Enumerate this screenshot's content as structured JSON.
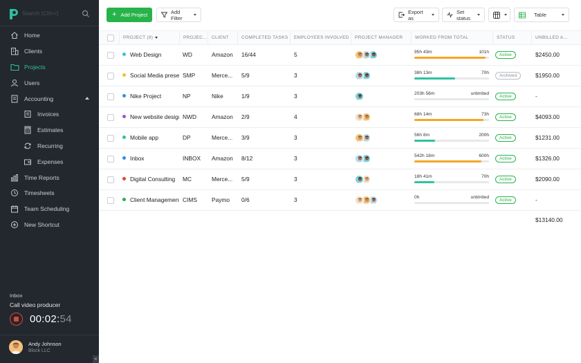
{
  "sidebar": {
    "search_placeholder": "Search (Ctrl+/)",
    "items": [
      {
        "label": "Home",
        "icon": "home-icon"
      },
      {
        "label": "Clients",
        "icon": "building-icon"
      },
      {
        "label": "Projects",
        "icon": "folder-icon",
        "active": true
      },
      {
        "label": "Users",
        "icon": "user-icon"
      },
      {
        "label": "Accounting",
        "icon": "ledger-icon",
        "expanded": true
      },
      {
        "label": "Invoices",
        "icon": "invoice-icon",
        "sub": true
      },
      {
        "label": "Estimates",
        "icon": "calculator-icon",
        "sub": true
      },
      {
        "label": "Recurring",
        "icon": "refresh-icon",
        "sub": true
      },
      {
        "label": "Expenses",
        "icon": "wallet-icon",
        "sub": true
      },
      {
        "label": "Time Reports",
        "icon": "bar-chart-icon"
      },
      {
        "label": "Timesheets",
        "icon": "clock-icon"
      },
      {
        "label": "Team Scheduling",
        "icon": "calendar-icon"
      },
      {
        "label": "New Shortcut",
        "icon": "plus-circle-icon"
      }
    ],
    "timer": {
      "project": "Inbox",
      "task": "Call video producer",
      "time_main": "00:02:",
      "time_seconds": "54"
    },
    "user": {
      "name": "Andy Johnson",
      "company": "Block LLC"
    },
    "collapse_label": "«"
  },
  "toolbar": {
    "add_project": "Add Project",
    "add_filter": "Add Filter",
    "export": "Export as",
    "set_status": "Set status",
    "view": "Table"
  },
  "table": {
    "headers": {
      "project": "PROJECT (8)",
      "code": "PROJEC...",
      "client": "CLIENT",
      "tasks": "COMPLETED TASKS",
      "employees": "EMPLOYEES INVOLVED",
      "manager": "PROJECT MANAGER",
      "worked": "WORKED FROM TOTAL",
      "status": "STATUS",
      "unbilled": "UNBILLED A..."
    },
    "rows": [
      {
        "name": "Web Design",
        "dot": "#2ec6d6",
        "code": "WD",
        "client": "Amazon",
        "tasks": "16/44",
        "employees": "5",
        "used": "95h 43m",
        "total": "101h",
        "progress": 0.95,
        "bar": "#f5a623",
        "status": "Active",
        "unbilled": "$2450.00",
        "avatars": 3
      },
      {
        "name": "Social Media presen",
        "dot": "#f2c12e",
        "code": "SMP",
        "client": "Merce...",
        "tasks": "5/9",
        "employees": "3",
        "used": "38h 13m",
        "total": "70h",
        "progress": 0.55,
        "bar": "#2ec1a0",
        "status": "Archived",
        "unbilled": "$1950.00",
        "avatars": 2
      },
      {
        "name": "Nike Project",
        "dot": "#2f8fe8",
        "code": "NP",
        "client": "Nike",
        "tasks": "1/9",
        "employees": "3",
        "used": "203h 56m",
        "total": "unlimited",
        "progress": 0,
        "bar": "#2ec1a0",
        "status": "Active",
        "unbilled": "-",
        "avatars": 1
      },
      {
        "name": "New website design",
        "dot": "#8e5ad6",
        "code": "NWD",
        "client": "Amazon",
        "tasks": "2/9",
        "employees": "4",
        "used": "68h 14m",
        "total": "73h",
        "progress": 0.93,
        "bar": "#f5a623",
        "status": "Active",
        "unbilled": "$4093.00",
        "avatars": 2
      },
      {
        "name": "Mobile app",
        "dot": "#2ec1a0",
        "code": "DP",
        "client": "Merce...",
        "tasks": "3/9",
        "employees": "3",
        "used": "56h 8m",
        "total": "200h",
        "progress": 0.28,
        "bar": "#2ec1a0",
        "status": "Active",
        "unbilled": "$1231.00",
        "avatars": 2
      },
      {
        "name": "Inbox",
        "dot": "#2f8fe8",
        "code": "INBOX",
        "client": "Amazon",
        "tasks": "8/12",
        "employees": "3",
        "used": "542h 18m",
        "total": "600h",
        "progress": 0.9,
        "bar": "#f5a623",
        "status": "Active",
        "unbilled": "$1326.00",
        "avatars": 2
      },
      {
        "name": "Digital Consulting",
        "dot": "#e0453a",
        "code": "MC",
        "client": "Merce...",
        "tasks": "5/9",
        "employees": "3",
        "used": "18h 41m",
        "total": "70h",
        "progress": 0.27,
        "bar": "#2ec1a0",
        "status": "Active",
        "unbilled": "$2090.00",
        "avatars": 2
      },
      {
        "name": "Client Management",
        "dot": "#27b349",
        "code": "CIMS",
        "client": "Paymo",
        "tasks": "0/6",
        "employees": "3",
        "used": "0h",
        "total": "unlimited",
        "progress": 0,
        "bar": "#2ec1a0",
        "status": "Active",
        "unbilled": "-",
        "avatars": 3
      }
    ],
    "total_unbilled": "$13140.00"
  },
  "colors": {
    "sidebar_bg": "#23272e",
    "accent_green": "#27b349",
    "active_nav": "#2ec1a0",
    "bar_orange": "#f5a623",
    "bar_teal": "#2ec1a0",
    "stop_red": "#e0453a"
  }
}
